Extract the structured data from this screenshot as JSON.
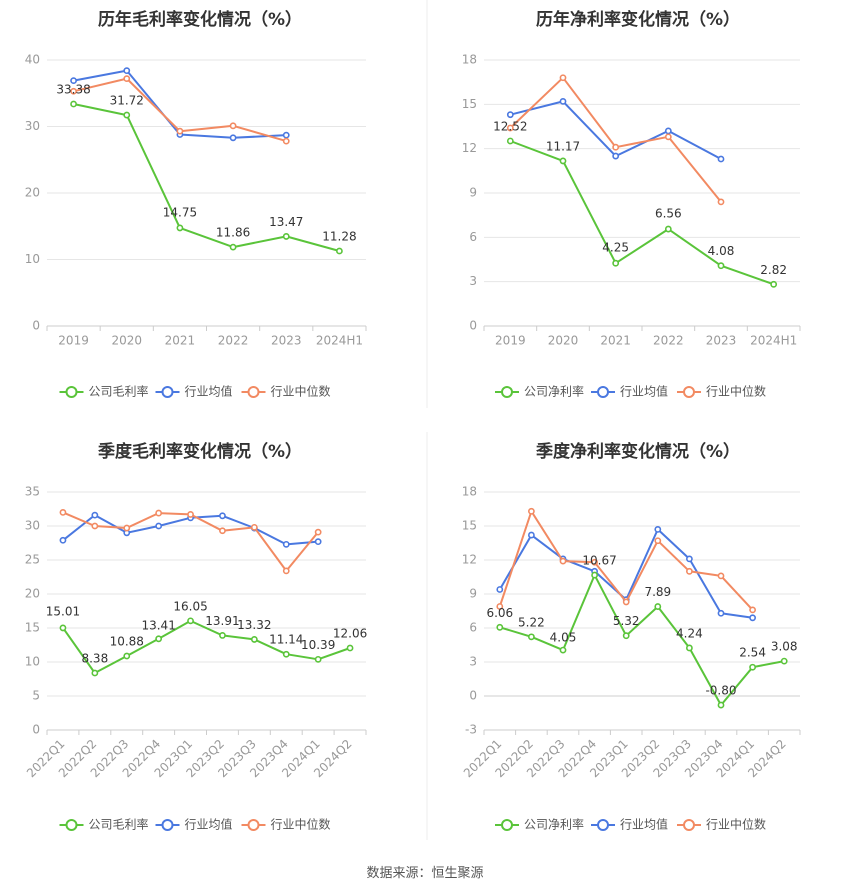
{
  "source": "数据来源：恒生聚源",
  "colors": {
    "company": "#5ac43a",
    "industry_mean": "#4a78e0",
    "industry_median": "#f28a62",
    "grid": "#e6e6e6",
    "axis": "#999999",
    "title": "#333333",
    "label": "#333333"
  },
  "chart_data": [
    {
      "type": "line",
      "title": "历年毛利率变化情况（%）",
      "categories": [
        "2019",
        "2020",
        "2021",
        "2022",
        "2023",
        "2024H1"
      ],
      "ylim": [
        0,
        40
      ],
      "yticks": [
        0,
        10,
        20,
        30,
        40
      ],
      "legend_position": "bottom",
      "series": [
        {
          "name": "公司毛利率",
          "role": "company",
          "values": [
            33.38,
            31.72,
            14.75,
            11.86,
            13.47,
            11.28
          ],
          "labels": [
            "33.38",
            "31.72",
            "14.75",
            "11.86",
            "13.47",
            "11.28"
          ]
        },
        {
          "name": "行业均值",
          "role": "industry_mean",
          "values": [
            36.9,
            38.4,
            28.8,
            28.3,
            28.7,
            null
          ]
        },
        {
          "name": "行业中位数",
          "role": "industry_median",
          "values": [
            35.3,
            37.2,
            29.3,
            30.1,
            27.8,
            null
          ]
        }
      ]
    },
    {
      "type": "line",
      "title": "历年净利率变化情况（%）",
      "categories": [
        "2019",
        "2020",
        "2021",
        "2022",
        "2023",
        "2024H1"
      ],
      "ylim": [
        0,
        18
      ],
      "yticks": [
        0,
        3,
        6,
        9,
        12,
        15,
        18
      ],
      "legend_position": "bottom",
      "series": [
        {
          "name": "公司净利率",
          "role": "company",
          "values": [
            12.52,
            11.17,
            4.25,
            6.56,
            4.08,
            2.82
          ],
          "labels": [
            "12.52",
            "11.17",
            "4.25",
            "6.56",
            "4.08",
            "2.82"
          ]
        },
        {
          "name": "行业均值",
          "role": "industry_mean",
          "values": [
            14.3,
            15.2,
            11.5,
            13.2,
            11.3,
            null
          ]
        },
        {
          "name": "行业中位数",
          "role": "industry_median",
          "values": [
            13.4,
            16.8,
            12.1,
            12.8,
            8.4,
            null
          ]
        }
      ]
    },
    {
      "type": "line",
      "title": "季度毛利率变化情况（%）",
      "categories": [
        "2022Q1",
        "2022Q2",
        "2022Q3",
        "2022Q4",
        "2023Q1",
        "2023Q2",
        "2023Q3",
        "2023Q4",
        "2024Q1",
        "2024Q2"
      ],
      "ylim": [
        0,
        35
      ],
      "yticks": [
        0,
        5,
        10,
        15,
        20,
        25,
        30,
        35
      ],
      "legend_position": "bottom",
      "series": [
        {
          "name": "公司毛利率",
          "role": "company",
          "values": [
            15.01,
            8.38,
            10.88,
            13.41,
            16.05,
            13.91,
            13.32,
            11.14,
            10.39,
            12.06
          ],
          "labels": [
            "15.01",
            "8.38",
            "10.88",
            "13.41",
            "16.05",
            "13.91",
            "13.32",
            "11.14",
            "10.39",
            "12.06"
          ]
        },
        {
          "name": "行业均值",
          "role": "industry_mean",
          "values": [
            27.9,
            31.6,
            29.0,
            30.0,
            31.2,
            31.5,
            29.7,
            27.3,
            27.7,
            null
          ]
        },
        {
          "name": "行业中位数",
          "role": "industry_median",
          "values": [
            32.0,
            30.0,
            29.7,
            31.9,
            31.7,
            29.3,
            29.8,
            23.4,
            29.1,
            null
          ]
        }
      ]
    },
    {
      "type": "line",
      "title": "季度净利率变化情况（%）",
      "categories": [
        "2022Q1",
        "2022Q2",
        "2022Q3",
        "2022Q4",
        "2023Q1",
        "2023Q2",
        "2023Q3",
        "2023Q4",
        "2024Q1",
        "2024Q2"
      ],
      "ylim": [
        -3,
        18
      ],
      "yticks": [
        -3,
        0,
        3,
        6,
        9,
        12,
        15,
        18
      ],
      "legend_position": "bottom",
      "series": [
        {
          "name": "公司净利率",
          "role": "company",
          "values": [
            6.06,
            5.22,
            4.05,
            10.67,
            5.32,
            7.89,
            4.24,
            -0.8,
            2.54,
            3.08
          ],
          "labels": [
            "6.06",
            "5.22",
            "4.05",
            "10.67",
            "5.32",
            "7.89",
            "4.24",
            "-0.80",
            "2.54",
            "3.08"
          ]
        },
        {
          "name": "行业均值",
          "role": "industry_mean",
          "values": [
            9.4,
            14.2,
            12.1,
            11.0,
            8.5,
            14.7,
            12.1,
            7.3,
            6.9,
            null
          ]
        },
        {
          "name": "行业中位数",
          "role": "industry_median",
          "values": [
            7.9,
            16.3,
            11.9,
            11.8,
            8.3,
            13.7,
            11.0,
            10.6,
            7.6,
            null
          ]
        }
      ]
    }
  ]
}
